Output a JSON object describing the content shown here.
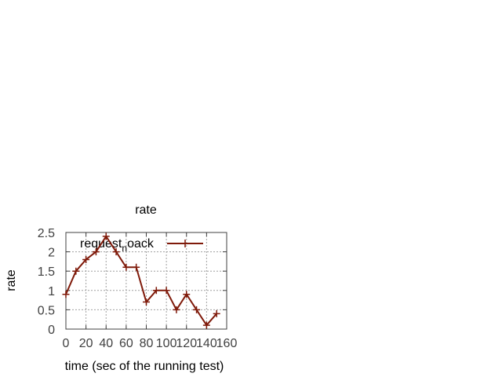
{
  "chart_data": {
    "type": "line",
    "title": "rate",
    "xlabel": "time (sec of the running test)",
    "ylabel": "rate",
    "xlim": [
      0,
      160
    ],
    "ylim": [
      0,
      2.5
    ],
    "xticks": [
      0,
      20,
      40,
      60,
      80,
      100,
      120,
      140,
      160
    ],
    "yticks": [
      0,
      0.5,
      1,
      1.5,
      2,
      2.5
    ],
    "xtick_labels": [
      "0",
      "20",
      "40",
      "60",
      "80",
      "100",
      "120",
      "140",
      "160"
    ],
    "ytick_labels": [
      "0",
      "0.5",
      "1",
      "1.5",
      "2",
      "2.5"
    ],
    "grid": true,
    "legend_position": "top-right",
    "colors": {
      "series": "#7f1a0a",
      "grid": "#a0a0a0",
      "axis": "#404040"
    },
    "series": [
      {
        "name_parts": {
          "main": "request",
          "sub": "n",
          "tail": "oack"
        },
        "x": [
          0,
          10,
          20,
          30,
          40,
          50,
          60,
          70,
          80,
          90,
          100,
          110,
          120,
          130,
          140,
          150
        ],
        "y": [
          0.9,
          1.5,
          1.8,
          2.0,
          2.4,
          2.0,
          1.6,
          1.6,
          0.7,
          1.0,
          1.0,
          0.5,
          0.9,
          0.5,
          0.1,
          0.4
        ]
      }
    ]
  }
}
